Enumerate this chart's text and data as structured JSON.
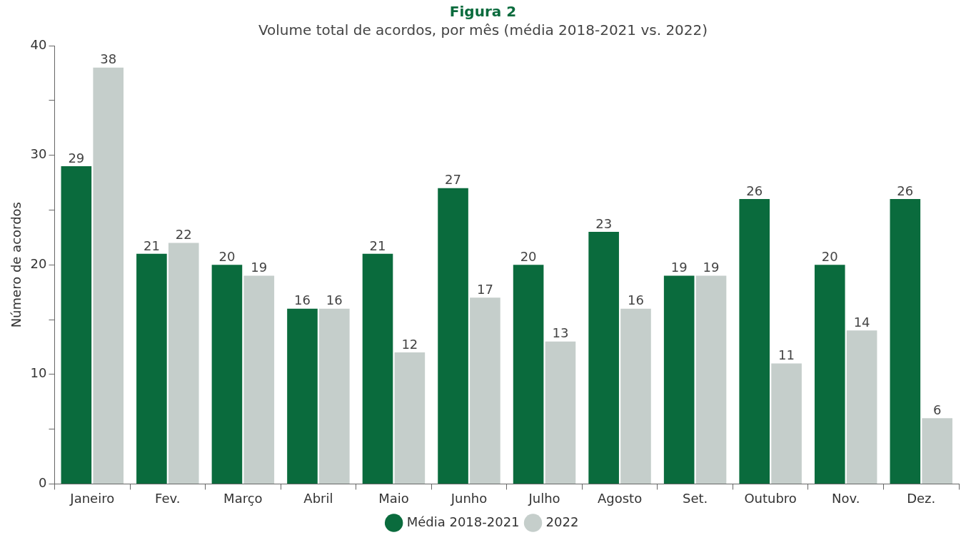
{
  "chart_data": {
    "type": "bar",
    "title": "Figura 2",
    "subtitle": "Volume total de acordos, por mês (média 2018-2021 vs. 2022)",
    "ylabel": "Número de acordos",
    "categories": [
      "Janeiro",
      "Fev.",
      "Março",
      "Abril",
      "Maio",
      "Junho",
      "Julho",
      "Agosto",
      "Set.",
      "Outubro",
      "Nov.",
      "Dez."
    ],
    "series": [
      {
        "name": "Média 2018-2021",
        "color": "#0a6b3d",
        "values": [
          29,
          21,
          20,
          16,
          21,
          27,
          20,
          23,
          19,
          26,
          20,
          26
        ]
      },
      {
        "name": "2022",
        "color": "#c5cecb",
        "values": [
          38,
          22,
          19,
          16,
          12,
          17,
          13,
          16,
          19,
          11,
          14,
          6
        ]
      }
    ],
    "ylim": [
      0,
      40
    ],
    "yticks": [
      0,
      {
        "value": 5,
        "label": null
      },
      10,
      {
        "value": 15,
        "label": null
      },
      20,
      {
        "value": 25,
        "label": null
      },
      30,
      {
        "value": 35,
        "label": null
      },
      40
    ],
    "data_labels": true,
    "legend": "bottom"
  }
}
